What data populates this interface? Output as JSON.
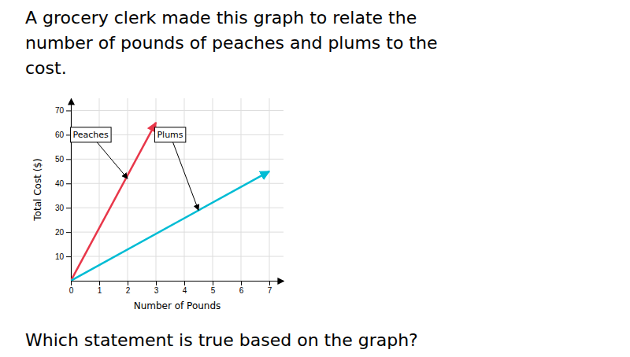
{
  "chart_data": {
    "type": "line",
    "title": [
      "A grocery clerk made this graph to relate the",
      "number of pounds of peaches and plums to the",
      "cost."
    ],
    "footer": "Which statement is true based on the graph?",
    "x_label": "Number of Pounds",
    "y_label": "Total Cost ($)",
    "xlim": [
      0,
      7.5
    ],
    "ylim": [
      0,
      75
    ],
    "xticks": [
      0,
      1,
      2,
      3,
      4,
      5,
      6,
      7
    ],
    "yticks": [
      10,
      20,
      30,
      40,
      50,
      60,
      70
    ],
    "grid": true,
    "series": [
      {
        "color": "#e8374a",
        "marker": "arrow",
        "x": [
          0,
          3
        ],
        "values": [
          0,
          65
        ]
      },
      {
        "color": "#00bcd4",
        "marker": "arrow",
        "x": [
          0,
          7
        ],
        "values": [
          0,
          45
        ]
      }
    ],
    "annotations": [
      {
        "text": "Peaches",
        "x": 0.7,
        "y": 60,
        "arrow_x": 2.0,
        "arrow_y": 42
      },
      {
        "text": "Plums",
        "x": 3.5,
        "y": 60,
        "arrow_x": 4.5,
        "arrow_y": 29
      }
    ]
  }
}
